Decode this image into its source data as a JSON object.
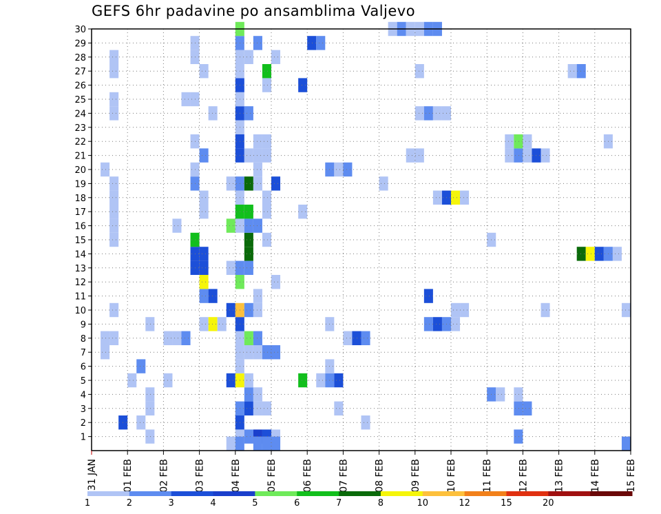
{
  "chart_data": {
    "type": "heatmap",
    "title": "GEFS 6hr padavine po ansamblima Valjevo",
    "x_ticks": [
      "31 JAN",
      "01 FEB",
      "02 FEB",
      "03 FEB",
      "04 FEB",
      "05 FEB",
      "06 FEB",
      "07 FEB",
      "08 FEB",
      "09 FEB",
      "10 FEB",
      "11 FEB",
      "12 FEB",
      "13 FEB",
      "14 FEB",
      "15 FEB"
    ],
    "y_ticks": [
      "1",
      "2",
      "3",
      "4",
      "5",
      "6",
      "7",
      "8",
      "9",
      "10",
      "11",
      "12",
      "13",
      "14",
      "15",
      "16",
      "17",
      "18",
      "19",
      "20",
      "21",
      "22",
      "23",
      "24",
      "25",
      "26",
      "27",
      "28",
      "29",
      "30"
    ],
    "ylim": [
      0,
      30
    ],
    "steps_per_day": 4,
    "grid": true,
    "colorbar": {
      "labels": [
        "1",
        "2",
        "3",
        "4",
        "5",
        "6",
        "7",
        "8",
        "10",
        "12",
        "15",
        "20"
      ],
      "colors": [
        "#b0c4f5",
        "#5e8cf0",
        "#1c4fd8",
        "#1a3fcc",
        "#6fea5a",
        "#12bf1c",
        "#0a6a0a",
        "#f5f50a",
        "#fdc03c",
        "#f2801a",
        "#e03010",
        "#a01010",
        "#6a0808"
      ]
    },
    "cells": [
      {
        "m": 1,
        "t": 6,
        "c": 1
      },
      {
        "m": 1,
        "t": 16,
        "c": 1
      },
      {
        "m": 1,
        "t": 17,
        "c": 2
      },
      {
        "m": 1,
        "t": 18,
        "c": 4
      },
      {
        "m": 1,
        "t": 19,
        "c": 3
      },
      {
        "m": 1,
        "t": 20,
        "c": 1
      },
      {
        "m": 1,
        "t": 47,
        "c": 2
      },
      {
        "m": 2,
        "t": 5,
        "c": 1
      },
      {
        "m": 2,
        "t": 3,
        "c": 3
      },
      {
        "m": 2,
        "t": 16,
        "c": 3
      },
      {
        "m": 2,
        "t": 30,
        "c": 1
      },
      {
        "m": 3,
        "t": 6,
        "c": 1
      },
      {
        "m": 3,
        "t": 16,
        "c": 2
      },
      {
        "m": 3,
        "t": 17,
        "c": 3
      },
      {
        "m": 3,
        "t": 18,
        "c": 1
      },
      {
        "m": 3,
        "t": 19,
        "c": 1
      },
      {
        "m": 3,
        "t": 27,
        "c": 1
      },
      {
        "m": 3,
        "t": 47,
        "c": 2
      },
      {
        "m": 3,
        "t": 48,
        "c": 2
      },
      {
        "m": 4,
        "t": 6,
        "c": 1
      },
      {
        "m": 4,
        "t": 17,
        "c": 2
      },
      {
        "m": 4,
        "t": 18,
        "c": 1
      },
      {
        "m": 4,
        "t": 44,
        "c": 2
      },
      {
        "m": 4,
        "t": 45,
        "c": 1
      },
      {
        "m": 4,
        "t": 47,
        "c": 1
      },
      {
        "m": 5,
        "t": 4,
        "c": 1
      },
      {
        "m": 5,
        "t": 8,
        "c": 1
      },
      {
        "m": 5,
        "t": 15,
        "c": 3
      },
      {
        "m": 5,
        "t": 16,
        "c": 8
      },
      {
        "m": 5,
        "t": 17,
        "c": 1
      },
      {
        "m": 5,
        "t": 23,
        "c": 6
      },
      {
        "m": 5,
        "t": 25,
        "c": 1
      },
      {
        "m": 5,
        "t": 26,
        "c": 2
      },
      {
        "m": 5,
        "t": 27,
        "c": 3
      },
      {
        "m": 6,
        "t": 5,
        "c": 2
      },
      {
        "m": 6,
        "t": 16,
        "c": 1
      },
      {
        "m": 6,
        "t": 26,
        "c": 1
      },
      {
        "m": 7,
        "t": 1,
        "c": 1
      },
      {
        "m": 7,
        "t": 16,
        "c": 1
      },
      {
        "m": 7,
        "t": 17,
        "c": 1
      },
      {
        "m": 7,
        "t": 18,
        "c": 1
      },
      {
        "m": 7,
        "t": 19,
        "c": 2
      },
      {
        "m": 7,
        "t": 20,
        "c": 2
      },
      {
        "m": 8,
        "t": 1,
        "c": 1
      },
      {
        "m": 8,
        "t": 2,
        "c": 1
      },
      {
        "m": 8,
        "t": 8,
        "c": 1
      },
      {
        "m": 8,
        "t": 9,
        "c": 1
      },
      {
        "m": 8,
        "t": 10,
        "c": 2
      },
      {
        "m": 8,
        "t": 16,
        "c": 1
      },
      {
        "m": 8,
        "t": 17,
        "c": 5
      },
      {
        "m": 8,
        "t": 18,
        "c": 2
      },
      {
        "m": 8,
        "t": 28,
        "c": 1
      },
      {
        "m": 8,
        "t": 29,
        "c": 3
      },
      {
        "m": 8,
        "t": 30,
        "c": 2
      },
      {
        "m": 9,
        "t": 6,
        "c": 1
      },
      {
        "m": 9,
        "t": 12,
        "c": 1
      },
      {
        "m": 9,
        "t": 13,
        "c": 8
      },
      {
        "m": 9,
        "t": 14,
        "c": 1
      },
      {
        "m": 9,
        "t": 16,
        "c": 3
      },
      {
        "m": 9,
        "t": 26,
        "c": 1
      },
      {
        "m": 9,
        "t": 37,
        "c": 2
      },
      {
        "m": 9,
        "t": 38,
        "c": 3
      },
      {
        "m": 9,
        "t": 39,
        "c": 2
      },
      {
        "m": 9,
        "t": 40,
        "c": 1
      },
      {
        "m": 10,
        "t": 2,
        "c": 1
      },
      {
        "m": 10,
        "t": 15,
        "c": 3
      },
      {
        "m": 10,
        "t": 16,
        "c": 9
      },
      {
        "m": 10,
        "t": 17,
        "c": 2
      },
      {
        "m": 10,
        "t": 18,
        "c": 1
      },
      {
        "m": 10,
        "t": 40,
        "c": 1
      },
      {
        "m": 10,
        "t": 41,
        "c": 1
      },
      {
        "m": 10,
        "t": 50,
        "c": 1
      },
      {
        "m": 10,
        "t": 59,
        "c": 1
      },
      {
        "m": 11,
        "t": 12,
        "c": 2
      },
      {
        "m": 11,
        "t": 13,
        "c": 3
      },
      {
        "m": 11,
        "t": 18,
        "c": 1
      },
      {
        "m": 11,
        "t": 37,
        "c": 3
      },
      {
        "m": 12,
        "t": 12,
        "c": 8
      },
      {
        "m": 12,
        "t": 16,
        "c": 5
      },
      {
        "m": 12,
        "t": 20,
        "c": 1
      },
      {
        "m": 13,
        "t": 11,
        "c": 3
      },
      {
        "m": 13,
        "t": 12,
        "c": 3
      },
      {
        "m": 13,
        "t": 15,
        "c": 1
      },
      {
        "m": 13,
        "t": 16,
        "c": 2
      },
      {
        "m": 13,
        "t": 17,
        "c": 2
      },
      {
        "m": 14,
        "t": 11,
        "c": 3
      },
      {
        "m": 14,
        "t": 12,
        "c": 3
      },
      {
        "m": 14,
        "t": 17,
        "c": 7
      },
      {
        "m": 14,
        "t": 54,
        "c": 7
      },
      {
        "m": 14,
        "t": 55,
        "c": 8
      },
      {
        "m": 14,
        "t": 56,
        "c": 3
      },
      {
        "m": 14,
        "t": 57,
        "c": 2
      },
      {
        "m": 14,
        "t": 58,
        "c": 1
      },
      {
        "m": 15,
        "t": 2,
        "c": 1
      },
      {
        "m": 15,
        "t": 11,
        "c": 6
      },
      {
        "m": 15,
        "t": 17,
        "c": 7
      },
      {
        "m": 15,
        "t": 19,
        "c": 1
      },
      {
        "m": 15,
        "t": 44,
        "c": 1
      },
      {
        "m": 16,
        "t": 2,
        "c": 1
      },
      {
        "m": 16,
        "t": 9,
        "c": 1
      },
      {
        "m": 16,
        "t": 15,
        "c": 5
      },
      {
        "m": 16,
        "t": 16,
        "c": 1
      },
      {
        "m": 16,
        "t": 17,
        "c": 2
      },
      {
        "m": 16,
        "t": 18,
        "c": 2
      },
      {
        "m": 17,
        "t": 2,
        "c": 1
      },
      {
        "m": 17,
        "t": 12,
        "c": 1
      },
      {
        "m": 17,
        "t": 16,
        "c": 6
      },
      {
        "m": 17,
        "t": 17,
        "c": 6
      },
      {
        "m": 17,
        "t": 19,
        "c": 1
      },
      {
        "m": 17,
        "t": 23,
        "c": 1
      },
      {
        "m": 18,
        "t": 2,
        "c": 1
      },
      {
        "m": 18,
        "t": 12,
        "c": 1
      },
      {
        "m": 18,
        "t": 16,
        "c": 1
      },
      {
        "m": 18,
        "t": 19,
        "c": 1
      },
      {
        "m": 18,
        "t": 38,
        "c": 1
      },
      {
        "m": 18,
        "t": 39,
        "c": 3
      },
      {
        "m": 18,
        "t": 40,
        "c": 8
      },
      {
        "m": 18,
        "t": 41,
        "c": 1
      },
      {
        "m": 19,
        "t": 2,
        "c": 1
      },
      {
        "m": 19,
        "t": 11,
        "c": 2
      },
      {
        "m": 19,
        "t": 15,
        "c": 1
      },
      {
        "m": 19,
        "t": 16,
        "c": 2
      },
      {
        "m": 19,
        "t": 17,
        "c": 7
      },
      {
        "m": 19,
        "t": 18,
        "c": 1
      },
      {
        "m": 19,
        "t": 20,
        "c": 3
      },
      {
        "m": 19,
        "t": 32,
        "c": 1
      },
      {
        "m": 20,
        "t": 1,
        "c": 1
      },
      {
        "m": 20,
        "t": 11,
        "c": 1
      },
      {
        "m": 20,
        "t": 18,
        "c": 1
      },
      {
        "m": 20,
        "t": 26,
        "c": 2
      },
      {
        "m": 20,
        "t": 27,
        "c": 1
      },
      {
        "m": 20,
        "t": 28,
        "c": 2
      },
      {
        "m": 21,
        "t": 12,
        "c": 2
      },
      {
        "m": 21,
        "t": 16,
        "c": 3
      },
      {
        "m": 21,
        "t": 17,
        "c": 1
      },
      {
        "m": 21,
        "t": 18,
        "c": 1
      },
      {
        "m": 21,
        "t": 19,
        "c": 1
      },
      {
        "m": 21,
        "t": 35,
        "c": 1
      },
      {
        "m": 21,
        "t": 36,
        "c": 1
      },
      {
        "m": 21,
        "t": 46,
        "c": 1
      },
      {
        "m": 21,
        "t": 47,
        "c": 2
      },
      {
        "m": 21,
        "t": 48,
        "c": 1
      },
      {
        "m": 21,
        "t": 49,
        "c": 3
      },
      {
        "m": 21,
        "t": 50,
        "c": 1
      },
      {
        "m": 22,
        "t": 11,
        "c": 1
      },
      {
        "m": 22,
        "t": 16,
        "c": 3
      },
      {
        "m": 22,
        "t": 18,
        "c": 1
      },
      {
        "m": 22,
        "t": 19,
        "c": 1
      },
      {
        "m": 22,
        "t": 46,
        "c": 1
      },
      {
        "m": 22,
        "t": 47,
        "c": 5
      },
      {
        "m": 22,
        "t": 48,
        "c": 1
      },
      {
        "m": 22,
        "t": 57,
        "c": 1
      },
      {
        "m": 23,
        "t": 16,
        "c": 1
      },
      {
        "m": 24,
        "t": 2,
        "c": 1
      },
      {
        "m": 24,
        "t": 13,
        "c": 1
      },
      {
        "m": 24,
        "t": 16,
        "c": 3
      },
      {
        "m": 24,
        "t": 17,
        "c": 2
      },
      {
        "m": 24,
        "t": 36,
        "c": 1
      },
      {
        "m": 24,
        "t": 37,
        "c": 2
      },
      {
        "m": 24,
        "t": 38,
        "c": 1
      },
      {
        "m": 24,
        "t": 39,
        "c": 1
      },
      {
        "m": 25,
        "t": 2,
        "c": 1
      },
      {
        "m": 25,
        "t": 10,
        "c": 1
      },
      {
        "m": 25,
        "t": 11,
        "c": 1
      },
      {
        "m": 25,
        "t": 16,
        "c": 1
      },
      {
        "m": 26,
        "t": 16,
        "c": 3
      },
      {
        "m": 26,
        "t": 19,
        "c": 1
      },
      {
        "m": 26,
        "t": 23,
        "c": 3
      },
      {
        "m": 27,
        "t": 2,
        "c": 1
      },
      {
        "m": 27,
        "t": 12,
        "c": 1
      },
      {
        "m": 27,
        "t": 16,
        "c": 1
      },
      {
        "m": 27,
        "t": 19,
        "c": 6
      },
      {
        "m": 27,
        "t": 36,
        "c": 1
      },
      {
        "m": 27,
        "t": 53,
        "c": 1
      },
      {
        "m": 27,
        "t": 54,
        "c": 2
      },
      {
        "m": 28,
        "t": 2,
        "c": 1
      },
      {
        "m": 28,
        "t": 11,
        "c": 1
      },
      {
        "m": 28,
        "t": 16,
        "c": 1
      },
      {
        "m": 28,
        "t": 17,
        "c": 1
      },
      {
        "m": 28,
        "t": 20,
        "c": 1
      },
      {
        "m": 29,
        "t": 11,
        "c": 1
      },
      {
        "m": 29,
        "t": 16,
        "c": 2
      },
      {
        "m": 29,
        "t": 18,
        "c": 2
      },
      {
        "m": 29,
        "t": 24,
        "c": 3
      },
      {
        "m": 29,
        "t": 25,
        "c": 2
      },
      {
        "m": 30,
        "t": 16,
        "c": 5
      },
      {
        "m": 30,
        "t": 33,
        "c": 1
      },
      {
        "m": 30,
        "t": 34,
        "c": 2
      },
      {
        "m": 30,
        "t": 35,
        "c": 1
      },
      {
        "m": 30,
        "t": 36,
        "c": 1
      },
      {
        "m": 30,
        "t": 37,
        "c": 2
      },
      {
        "m": 30,
        "t": 38,
        "c": 2
      },
      {
        "m": 0.5,
        "t": 15,
        "c": 1
      },
      {
        "m": 0.5,
        "t": 16,
        "c": 2
      },
      {
        "m": 0.5,
        "t": 18,
        "c": 2
      },
      {
        "m": 0.5,
        "t": 19,
        "c": 2
      },
      {
        "m": 0.5,
        "t": 20,
        "c": 2
      },
      {
        "m": 0.5,
        "t": 59,
        "c": 2
      }
    ]
  }
}
